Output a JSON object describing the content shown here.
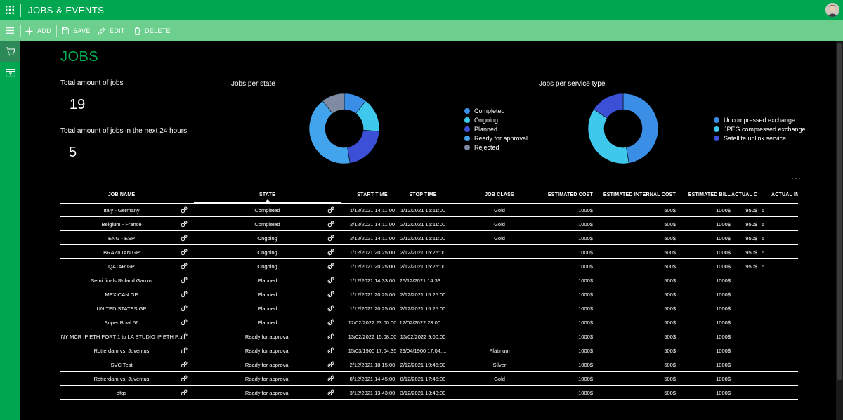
{
  "app": {
    "title": "JOBS & EVENTS"
  },
  "toolbar": {
    "add": "ADD",
    "save": "SAVE",
    "edit": "EDIT",
    "delete": "DELETE"
  },
  "colors": {
    "green": "#00a650",
    "toolbar_green": "#6ccf8e",
    "accent": "#00b050"
  },
  "page": {
    "title": "JOBS"
  },
  "kpis": {
    "total_label": "Total amount of jobs",
    "total_value": "19",
    "next24_label": "Total amount of jobs in the next 24 hours",
    "next24_value": "5"
  },
  "chart_data": [
    {
      "type": "pie",
      "title": "Jobs per state",
      "categories": [
        "Completed",
        "Ongoing",
        "Planned",
        "Ready for approval",
        "Rejected"
      ],
      "values": [
        2,
        3,
        4,
        8,
        2
      ],
      "colors": [
        "#3a8ee6",
        "#3ec8ec",
        "#3b50d6",
        "#42a4ec",
        "#7f8aa3"
      ],
      "legend": "right"
    },
    {
      "type": "pie",
      "title": "Jobs per service type",
      "categories": [
        "Uncompressed exchange",
        "JPEG compressed exchange",
        "Satellite uplink service"
      ],
      "values": [
        9,
        7,
        3
      ],
      "colors": [
        "#3a8ee6",
        "#3ec8ec",
        "#3b50d6"
      ],
      "legend": "right"
    }
  ],
  "table": {
    "headers": [
      "JOB NAME",
      "STATE",
      "START TIME",
      "STOP TIME",
      "JOB CLASS",
      "ESTIMATED COST",
      "ESTIMATED INTERNAL COST",
      "ESTIMATED BILL",
      "ACTUAL COST",
      "ACTUAL INT"
    ],
    "rows": [
      [
        "Italy - Germany",
        "Completed",
        "1/12/2021 14:11:00",
        "1/12/2021 15:11:00",
        "Gold",
        "1000$",
        "500$",
        "1000$",
        "950$",
        "5"
      ],
      [
        "Belgium - France",
        "Completed",
        "2/12/2021 14:11:00",
        "2/12/2021 15:11:00",
        "Gold",
        "1000$",
        "500$",
        "1000$",
        "950$",
        "5"
      ],
      [
        "ENG - ESP",
        "Ongoing",
        "2/12/2021 14:11:00",
        "2/12/2021 15:11:00",
        "Gold",
        "1000$",
        "500$",
        "1000$",
        "950$",
        "5"
      ],
      [
        "BRAZILIAN GP",
        "Ongoing",
        "1/12/2021 20:25:00",
        "2/12/2021 15:25:00",
        "",
        "1000$",
        "500$",
        "1000$",
        "950$",
        "5"
      ],
      [
        "QATAR GP",
        "Ongoing",
        "1/12/2021 20:25:00",
        "2/12/2021 15:25:00",
        "",
        "1000$",
        "500$",
        "1000$",
        "950$",
        "5"
      ],
      [
        "Semi finals Roland Garros",
        "Planned",
        "1/12/2021 14:33:00",
        "26/12/2021 14:33:...",
        "",
        "1000$",
        "500$",
        "1000$",
        "",
        ""
      ],
      [
        "MEXICAN GP",
        "Planned",
        "1/12/2021 20:25:00",
        "2/12/2021 15:25:00",
        "",
        "1000$",
        "500$",
        "1000$",
        "",
        ""
      ],
      [
        "UNITED STATES GP",
        "Planned",
        "1/12/2021 20:25:00",
        "2/12/2021 15:25:00",
        "",
        "1000$",
        "500$",
        "1000$",
        "",
        ""
      ],
      [
        "Super Bowl 56",
        "Planned",
        "12/02/2022 23:00:00",
        "12/02/2022 23:00:...",
        "",
        "1000$",
        "500$",
        "1000$",
        "",
        ""
      ],
      [
        "NY MCR IP ETH PORT 1 to LA STUDIO IP ETH P...",
        "Ready for approval",
        "13/02/2022 15:08:00",
        "13/02/2022 9:00:00",
        "",
        "1000$",
        "500$",
        "1000$",
        "",
        ""
      ],
      [
        "Rotterdam vs. Juventus",
        "Ready for approval",
        "15/03/1900 17:04:35",
        "29/04/1900 17:04:...",
        "Platinum",
        "1000$",
        "500$",
        "1000$",
        "",
        ""
      ],
      [
        "SVC Test",
        "Ready for approval",
        "2/12/2021 18:15:00",
        "2/12/2021 19:45:00",
        "Silver",
        "1000$",
        "500$",
        "1000$",
        "",
        ""
      ],
      [
        "Rotterdam vs. Juventus",
        "Ready for approval",
        "8/12/2021 14:45:00",
        "8/12/2021 17:45:00",
        "Gold",
        "1000$",
        "500$",
        "1000$",
        "",
        ""
      ],
      [
        "dfqs",
        "Ready for approval",
        "3/12/2021 13:43:00",
        "3/12/2021 13:43:00",
        "",
        "1000$",
        "500$",
        "1000$",
        "",
        ""
      ]
    ]
  }
}
